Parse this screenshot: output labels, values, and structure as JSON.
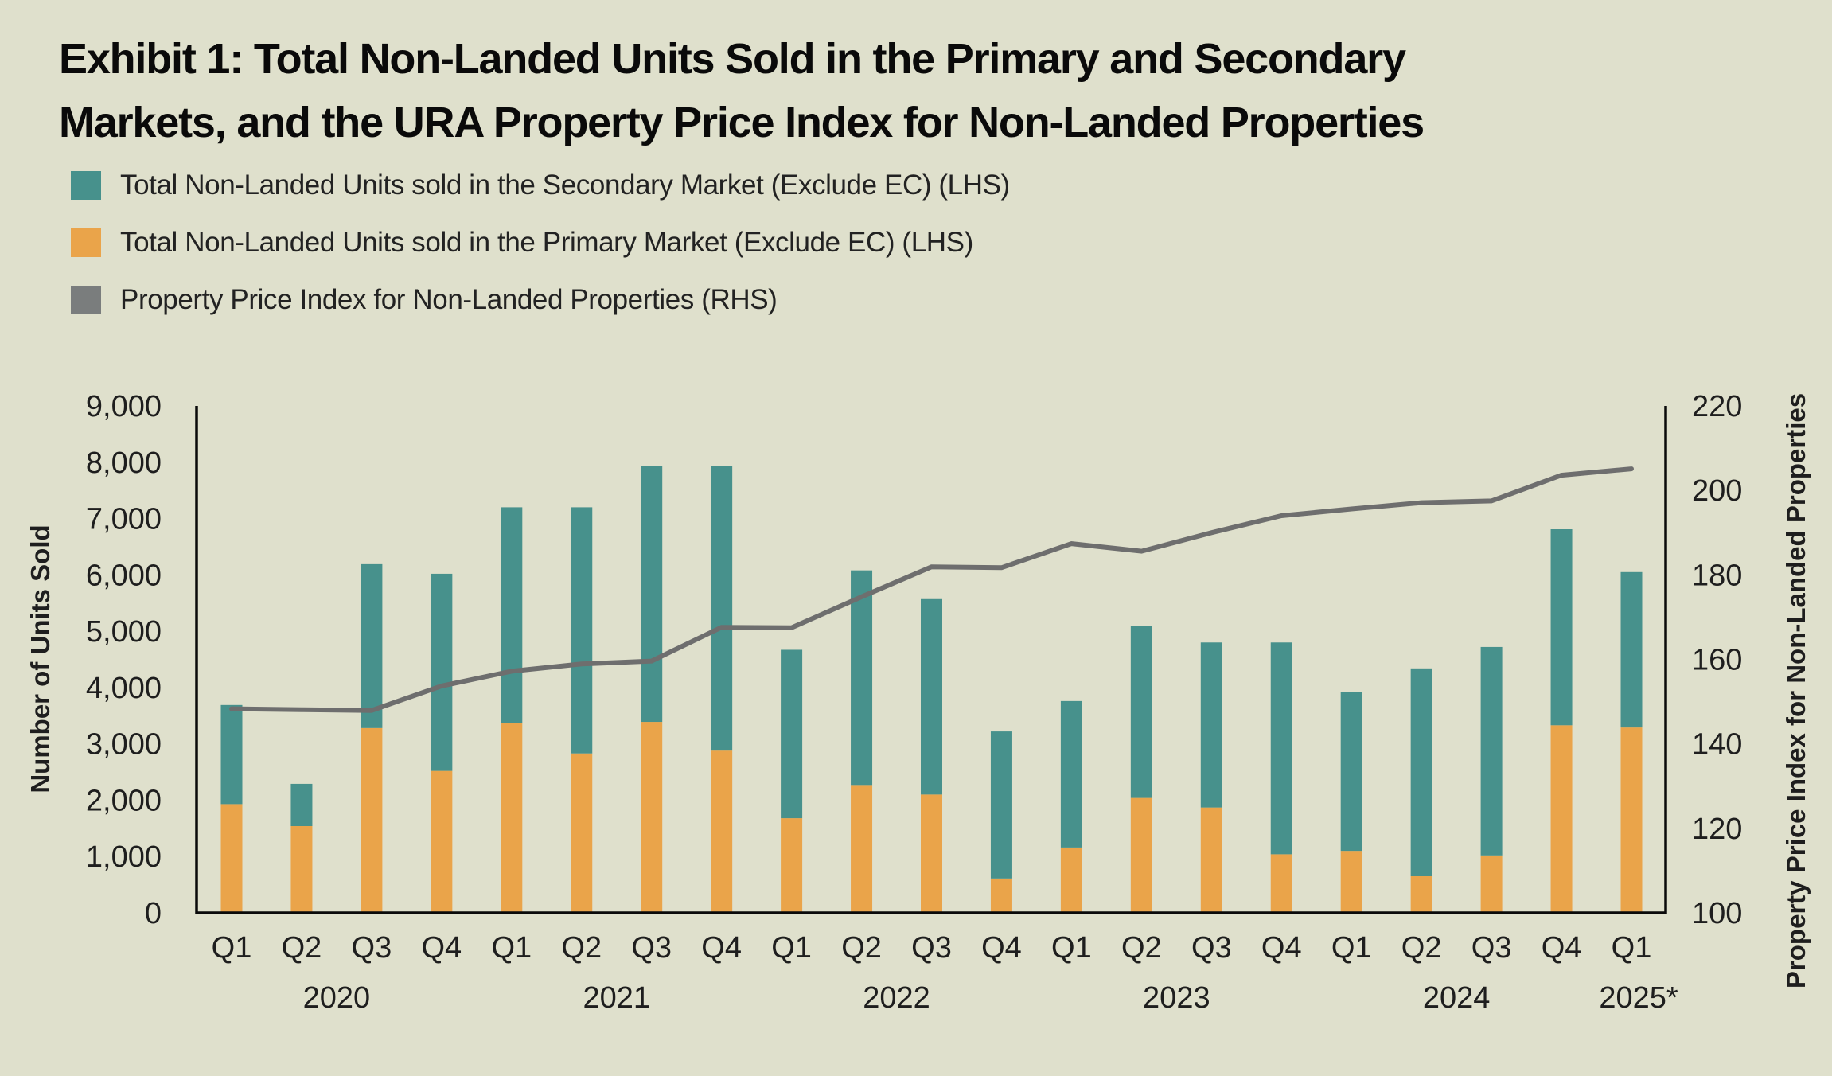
{
  "title": {
    "line1": "Exhibit 1: Total Non-Landed Units Sold in the Primary and Secondary",
    "line2": "Markets, and the URA Property Price Index for Non-Landed Properties"
  },
  "colors": {
    "background": "#DFE0CC",
    "secondary": "#47918C",
    "primary": "#EAA44A",
    "ppi_line": "#6E6E6E",
    "ppi_legend": "#7A7D7D",
    "axis": "#0A0A0A"
  },
  "legend": [
    {
      "key": "secondary",
      "label": "Total Non-Landed Units sold in the Secondary Market (Exclude EC) (LHS)",
      "icon": "teal-square-swatch"
    },
    {
      "key": "primary",
      "label": "Total Non-Landed Units sold in the Primary Market (Exclude EC) (LHS)",
      "icon": "orange-square-swatch"
    },
    {
      "key": "ppi",
      "label": "Property Price Index for Non-Landed Properties (RHS)",
      "icon": "gray-square-swatch"
    }
  ],
  "chart_data": {
    "type": "bar",
    "subtype": "stacked-bar-with-line-secondary-axis",
    "title": "Exhibit 1: Total Non-Landed Units Sold in the Primary and Secondary Markets, and the URA Property Price Index for Non-Landed Properties",
    "xlabel": "",
    "ylabel": "Number of Units Sold",
    "y2label": "Property Price Index for Non-Landed Properties",
    "ylim": [
      0,
      9000
    ],
    "y2lim": [
      100,
      220
    ],
    "yticks": [
      "0",
      "1,000",
      "2,000",
      "3,000",
      "4,000",
      "5,000",
      "6,000",
      "7,000",
      "8,000",
      "9,000"
    ],
    "ytick_values": [
      0,
      1000,
      2000,
      3000,
      4000,
      5000,
      6000,
      7000,
      8000,
      9000
    ],
    "y2ticks": [
      "100",
      "120",
      "140",
      "160",
      "180",
      "200",
      "220"
    ],
    "y2tick_values": [
      100,
      120,
      140,
      160,
      180,
      200,
      220
    ],
    "grid": false,
    "legend_position": "top-left",
    "categories": [
      "Q1",
      "Q2",
      "Q3",
      "Q4",
      "Q1",
      "Q2",
      "Q3",
      "Q4",
      "Q1",
      "Q2",
      "Q3",
      "Q4",
      "Q1",
      "Q2",
      "Q3",
      "Q4",
      "Q1",
      "Q2",
      "Q3",
      "Q4",
      "Q1"
    ],
    "year_groups": [
      {
        "label": "2020",
        "start": 0,
        "end": 3
      },
      {
        "label": "2021",
        "start": 4,
        "end": 7
      },
      {
        "label": "2022",
        "start": 8,
        "end": 11
      },
      {
        "label": "2023",
        "start": 12,
        "end": 15
      },
      {
        "label": "2024",
        "start": 16,
        "end": 19
      },
      {
        "label": "2025*",
        "start": 20,
        "end": 20
      }
    ],
    "series": [
      {
        "name": "Total Non-Landed Units sold in the Primary Market (Exclude EC) (LHS)",
        "key": "primary",
        "type": "bar",
        "axis": "left",
        "stack": "units",
        "values": [
          1930,
          1540,
          3280,
          2520,
          3370,
          2830,
          3390,
          2880,
          1680,
          2270,
          2100,
          610,
          1160,
          2040,
          1870,
          1040,
          1100,
          650,
          1020,
          3330,
          3290
        ]
      },
      {
        "name": "Total Non-Landed Units sold in the Secondary Market (Exclude EC) (LHS)",
        "key": "secondary",
        "type": "bar",
        "axis": "left",
        "stack": "units",
        "values": [
          1760,
          750,
          2910,
          3500,
          3830,
          4370,
          4550,
          5060,
          2990,
          3810,
          3470,
          2610,
          2600,
          3050,
          2930,
          3760,
          2820,
          3690,
          3700,
          3480,
          2760
        ]
      },
      {
        "name": "Property Price Index for Non-Landed Properties (RHS)",
        "key": "ppi",
        "type": "line",
        "axis": "right",
        "values": [
          148.3,
          148.1,
          147.9,
          153.7,
          157.2,
          158.9,
          159.6,
          167.6,
          167.5,
          174.8,
          181.9,
          181.7,
          187.4,
          185.6,
          190.0,
          194.0,
          195.6,
          197.1,
          197.5,
          203.6,
          205.1
        ]
      }
    ]
  }
}
